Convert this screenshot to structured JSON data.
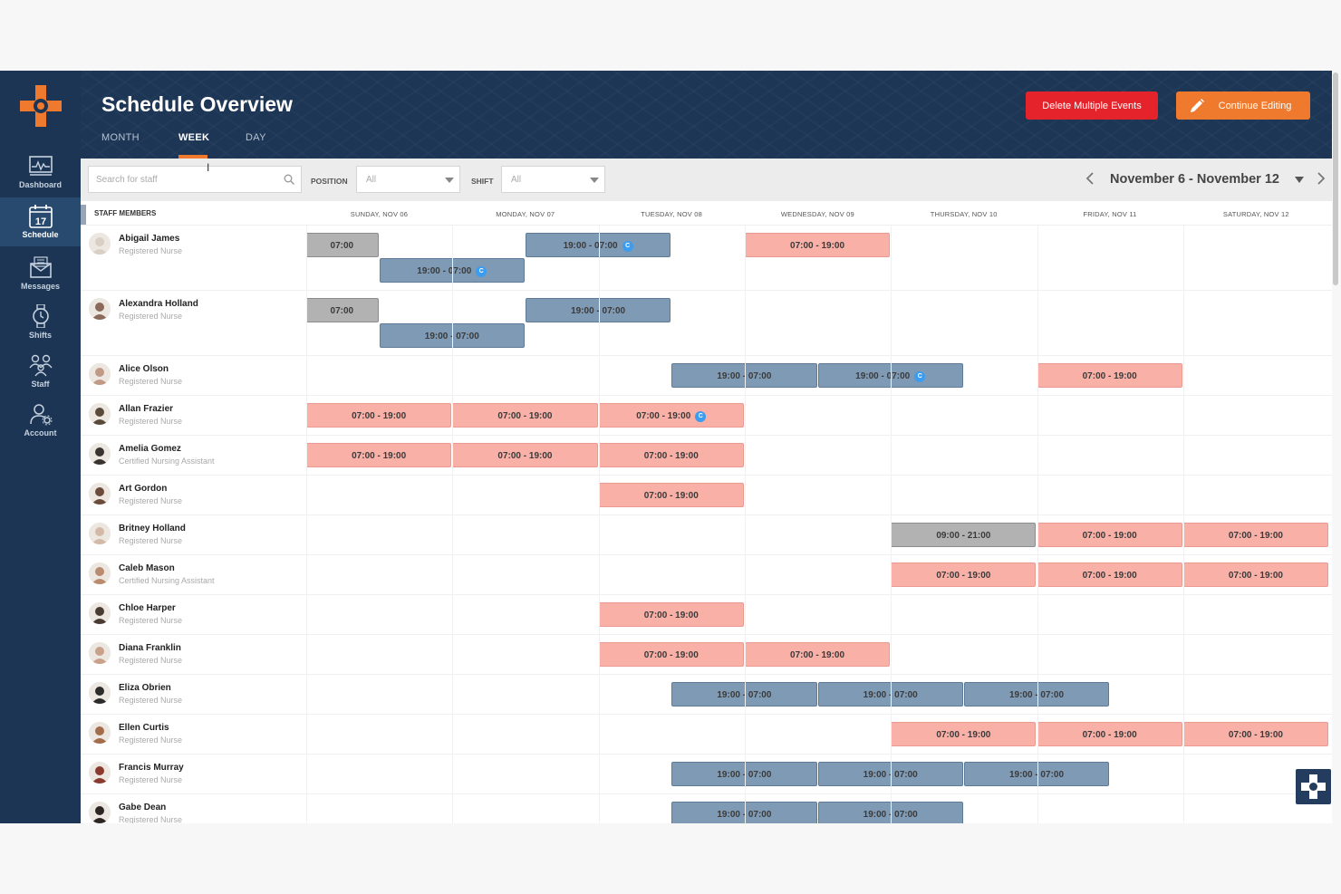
{
  "sidebar": {
    "items": [
      {
        "label": "Dashboard",
        "icon": "dashboard-icon"
      },
      {
        "label": "Schedule",
        "icon": "calendar-icon",
        "day": "17"
      },
      {
        "label": "Messages",
        "icon": "messages-icon"
      },
      {
        "label": "Shifts",
        "icon": "watch-icon"
      },
      {
        "label": "Staff",
        "icon": "staff-icon"
      },
      {
        "label": "Account",
        "icon": "account-icon"
      }
    ]
  },
  "header": {
    "title": "Schedule Overview",
    "tabs": [
      "MONTH",
      "WEEK",
      "DAY"
    ],
    "delete_label": "Delete Multiple Events",
    "edit_label": "Continue Editing"
  },
  "filters": {
    "search_placeholder": "Search for staff",
    "position_label": "POSITION",
    "position_value": "All",
    "shift_label": "SHIFT",
    "shift_value": "All",
    "date_range": "November 6 - November 12"
  },
  "grid": {
    "staff_header": "STAFF MEMBERS",
    "days": [
      "SUNDAY, NOV 06",
      "MONDAY, NOV 07",
      "TUESDAY, NOV 08",
      "WEDNESDAY, NOV 09",
      "THURSDAY, NOV 10",
      "FRIDAY, NOV 11",
      "SATURDAY, NOV 12"
    ]
  },
  "staff": [
    {
      "name": "Abigail James",
      "role": "Registered Nurse",
      "tall": true,
      "shifts": [
        {
          "label": "07:00",
          "type": "other",
          "start": -0.5,
          "lane": 0
        },
        {
          "label": "19:00 - 07:00",
          "type": "night",
          "start": 0.5,
          "lane": 1,
          "badge": "C"
        },
        {
          "label": "19:00 - 07:00",
          "type": "night",
          "start": 1.5,
          "lane": 0,
          "badge": "C"
        },
        {
          "label": "07:00 - 19:00",
          "type": "day",
          "start": 3,
          "lane": 0
        }
      ]
    },
    {
      "name": "Alexandra Holland",
      "role": "Registered Nurse",
      "tall": true,
      "shifts": [
        {
          "label": "07:00",
          "type": "other",
          "start": -0.5,
          "lane": 0
        },
        {
          "label": "19:00 - 07:00",
          "type": "night",
          "start": 0.5,
          "lane": 1
        },
        {
          "label": "19:00 - 07:00",
          "type": "night",
          "start": 1.5,
          "lane": 0
        }
      ]
    },
    {
      "name": "Alice Olson",
      "role": "Registered Nurse",
      "shifts": [
        {
          "label": "19:00 - 07:00",
          "type": "night",
          "start": 2.5,
          "lane": 0
        },
        {
          "label": "19:00 - 07:00",
          "type": "night",
          "start": 3.5,
          "lane": 0,
          "badge": "C"
        },
        {
          "label": "07:00 - 19:00",
          "type": "day",
          "start": 5,
          "lane": 0
        }
      ]
    },
    {
      "name": "Allan Frazier",
      "role": "Registered Nurse",
      "shifts": [
        {
          "label": "07:00 - 19:00",
          "type": "day",
          "start": 0,
          "lane": 0
        },
        {
          "label": "07:00 - 19:00",
          "type": "day",
          "start": 1,
          "lane": 0
        },
        {
          "label": "07:00 - 19:00",
          "type": "day",
          "start": 2,
          "lane": 0,
          "badge": "C"
        }
      ]
    },
    {
      "name": "Amelia Gomez",
      "role": "Certified Nursing Assistant",
      "shifts": [
        {
          "label": "07:00 - 19:00",
          "type": "day",
          "start": 0,
          "lane": 0
        },
        {
          "label": "07:00 - 19:00",
          "type": "day",
          "start": 1,
          "lane": 0
        },
        {
          "label": "07:00 - 19:00",
          "type": "day",
          "start": 2,
          "lane": 0
        }
      ]
    },
    {
      "name": "Art Gordon",
      "role": "Registered Nurse",
      "shifts": [
        {
          "label": "07:00 - 19:00",
          "type": "day",
          "start": 2,
          "lane": 0
        }
      ]
    },
    {
      "name": "Britney Holland",
      "role": "Registered Nurse",
      "shifts": [
        {
          "label": "09:00 - 21:00",
          "type": "other",
          "start": 4,
          "lane": 0
        },
        {
          "label": "07:00 - 19:00",
          "type": "day",
          "start": 5,
          "lane": 0
        },
        {
          "label": "07:00 - 19:00",
          "type": "day",
          "start": 6,
          "lane": 0
        }
      ]
    },
    {
      "name": "Caleb Mason",
      "role": "Certified Nursing Assistant",
      "shifts": [
        {
          "label": "07:00 - 19:00",
          "type": "day",
          "start": 4,
          "lane": 0
        },
        {
          "label": "07:00 - 19:00",
          "type": "day",
          "start": 5,
          "lane": 0
        },
        {
          "label": "07:00 - 19:00",
          "type": "day",
          "start": 6,
          "lane": 0
        }
      ]
    },
    {
      "name": "Chloe Harper",
      "role": "Registered Nurse",
      "shifts": [
        {
          "label": "07:00 - 19:00",
          "type": "day",
          "start": 2,
          "lane": 0
        }
      ]
    },
    {
      "name": "Diana Franklin",
      "role": "Registered Nurse",
      "shifts": [
        {
          "label": "07:00 - 19:00",
          "type": "day",
          "start": 2,
          "lane": 0
        },
        {
          "label": "07:00 - 19:00",
          "type": "day",
          "start": 3,
          "lane": 0
        }
      ]
    },
    {
      "name": "Eliza Obrien",
      "role": "Registered Nurse",
      "shifts": [
        {
          "label": "19:00 - 07:00",
          "type": "night",
          "start": 2.5,
          "lane": 0
        },
        {
          "label": "19:00 - 07:00",
          "type": "night",
          "start": 3.5,
          "lane": 0
        },
        {
          "label": "19:00 - 07:00",
          "type": "night",
          "start": 4.5,
          "lane": 0
        }
      ]
    },
    {
      "name": "Ellen Curtis",
      "role": "Registered Nurse",
      "shifts": [
        {
          "label": "07:00 - 19:00",
          "type": "day",
          "start": 4,
          "lane": 0
        },
        {
          "label": "07:00 - 19:00",
          "type": "day",
          "start": 5,
          "lane": 0
        },
        {
          "label": "07:00 - 19:00",
          "type": "day",
          "start": 6,
          "lane": 0
        }
      ]
    },
    {
      "name": "Francis Murray",
      "role": "Registered Nurse",
      "shifts": [
        {
          "label": "19:00 - 07:00",
          "type": "night",
          "start": 2.5,
          "lane": 0
        },
        {
          "label": "19:00 - 07:00",
          "type": "night",
          "start": 3.5,
          "lane": 0
        },
        {
          "label": "19:00 - 07:00",
          "type": "night",
          "start": 4.5,
          "lane": 0
        }
      ]
    },
    {
      "name": "Gabe Dean",
      "role": "Registered Nurse",
      "shifts": [
        {
          "label": "19:00 - 07:00",
          "type": "night",
          "start": 2.5,
          "lane": 0
        },
        {
          "label": "19:00 - 07:00",
          "type": "night",
          "start": 3.5,
          "lane": 0
        }
      ]
    }
  ]
}
